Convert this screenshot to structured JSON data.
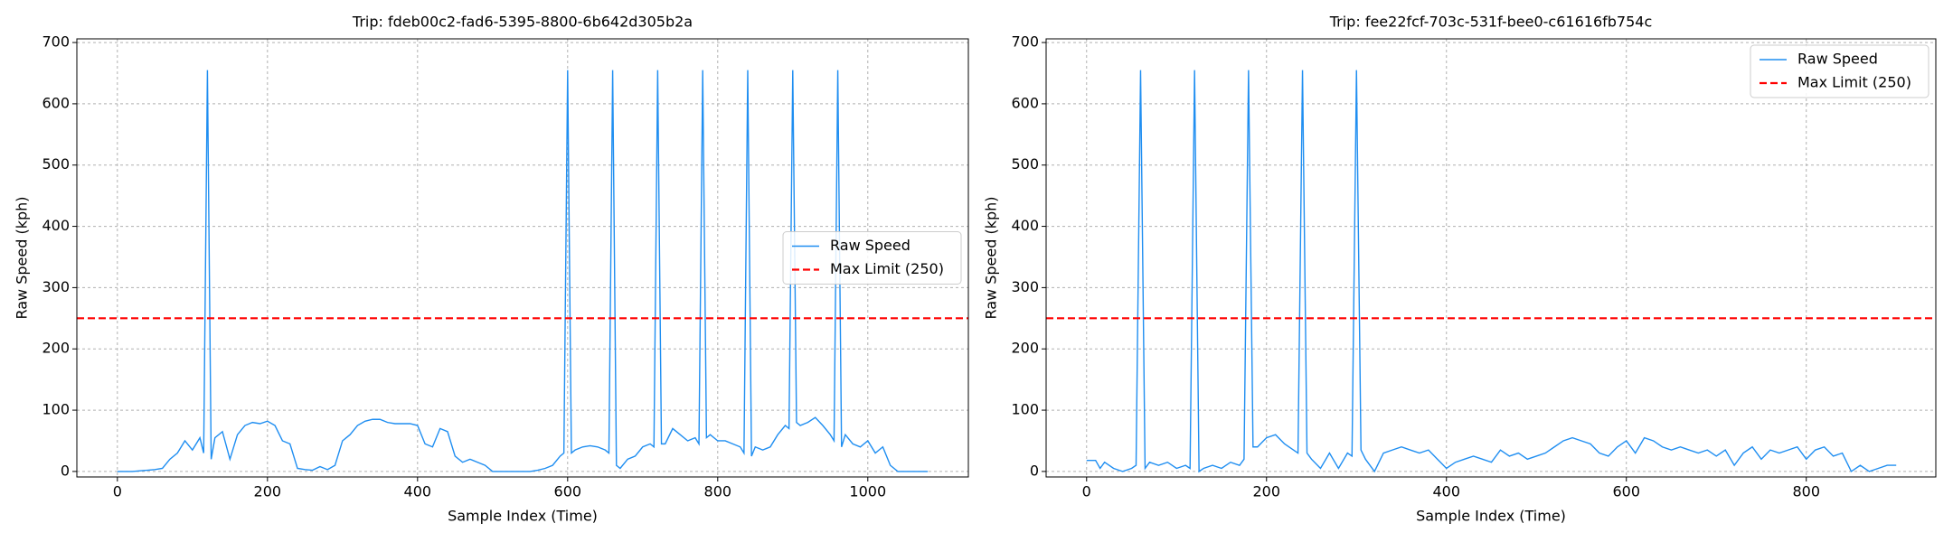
{
  "chart_data": [
    {
      "type": "line",
      "title": "Trip: fdeb00c2-fad6-5395-8800-6b642d305b2a",
      "x_label": "Sample Index (Time)",
      "y_label": "Raw Speed (kph)",
      "x": [
        0,
        10,
        20,
        30,
        40,
        50,
        60,
        70,
        80,
        90,
        100,
        110,
        115,
        120,
        125,
        130,
        140,
        150,
        160,
        170,
        180,
        190,
        200,
        210,
        220,
        230,
        240,
        250,
        260,
        270,
        280,
        290,
        300,
        310,
        320,
        330,
        340,
        350,
        360,
        370,
        380,
        390,
        400,
        410,
        420,
        430,
        440,
        450,
        460,
        470,
        480,
        490,
        500,
        510,
        520,
        530,
        540,
        550,
        560,
        570,
        580,
        590,
        595,
        600,
        605,
        610,
        620,
        630,
        640,
        650,
        655,
        660,
        665,
        670,
        680,
        690,
        700,
        710,
        715,
        720,
        725,
        730,
        740,
        750,
        760,
        770,
        775,
        780,
        785,
        790,
        800,
        810,
        820,
        830,
        835,
        840,
        845,
        850,
        860,
        870,
        880,
        890,
        895,
        900,
        905,
        910,
        920,
        930,
        940,
        950,
        955,
        960,
        965,
        970,
        980,
        990,
        1000,
        1010,
        1020,
        1030,
        1040,
        1050,
        1060,
        1070,
        1080
      ],
      "series": [
        {
          "name": "Raw Speed",
          "color": "#1f8ef1",
          "values": [
            0,
            0,
            0,
            1,
            2,
            3,
            5,
            20,
            30,
            50,
            35,
            55,
            30,
            655,
            20,
            55,
            65,
            20,
            60,
            75,
            80,
            78,
            82,
            75,
            50,
            45,
            5,
            3,
            2,
            8,
            3,
            10,
            50,
            60,
            75,
            82,
            85,
            85,
            80,
            78,
            78,
            78,
            75,
            45,
            40,
            70,
            65,
            25,
            15,
            20,
            15,
            10,
            0,
            0,
            0,
            0,
            0,
            0,
            2,
            5,
            10,
            25,
            30,
            655,
            30,
            35,
            40,
            42,
            40,
            35,
            30,
            655,
            10,
            5,
            20,
            25,
            40,
            45,
            40,
            655,
            45,
            45,
            70,
            60,
            50,
            55,
            45,
            655,
            55,
            60,
            50,
            50,
            45,
            40,
            30,
            655,
            25,
            40,
            35,
            40,
            60,
            75,
            70,
            655,
            80,
            75,
            80,
            88,
            75,
            60,
            50,
            655,
            40,
            60,
            45,
            40,
            50,
            30,
            40,
            10,
            0,
            0,
            0,
            0,
            0
          ]
        }
      ],
      "reference_line": {
        "name": "Max Limit (250)",
        "value": 250,
        "color": "#ff0000",
        "style": "dashed"
      },
      "xlim": [
        -54,
        1134
      ],
      "ylim": [
        -9,
        706
      ],
      "xticks": [
        0,
        200,
        400,
        600,
        800,
        1000
      ],
      "yticks": [
        0,
        100,
        200,
        300,
        400,
        500,
        600,
        700
      ],
      "grid": true,
      "legend_loc": "center right"
    },
    {
      "type": "line",
      "title": "Trip: fee22fcf-703c-531f-bee0-c61616fb754c",
      "x_label": "Sample Index (Time)",
      "y_label": "Raw Speed (kph)",
      "x": [
        0,
        10,
        15,
        20,
        30,
        40,
        50,
        55,
        60,
        65,
        70,
        80,
        90,
        100,
        110,
        115,
        120,
        125,
        130,
        140,
        150,
        160,
        170,
        175,
        180,
        185,
        190,
        200,
        210,
        220,
        230,
        235,
        240,
        245,
        250,
        260,
        270,
        280,
        290,
        295,
        300,
        305,
        310,
        320,
        330,
        340,
        350,
        360,
        370,
        380,
        390,
        400,
        410,
        420,
        430,
        440,
        450,
        460,
        470,
        480,
        490,
        500,
        510,
        520,
        530,
        540,
        550,
        560,
        570,
        580,
        590,
        600,
        610,
        620,
        630,
        640,
        650,
        660,
        670,
        680,
        690,
        700,
        710,
        720,
        730,
        740,
        750,
        760,
        770,
        780,
        790,
        800,
        810,
        820,
        830,
        840,
        850,
        860,
        870,
        880,
        890,
        900
      ],
      "series": [
        {
          "name": "Raw Speed",
          "color": "#1f8ef1",
          "values": [
            18,
            18,
            5,
            15,
            5,
            0,
            5,
            10,
            655,
            5,
            15,
            10,
            15,
            5,
            10,
            5,
            655,
            0,
            5,
            10,
            5,
            15,
            10,
            20,
            655,
            40,
            40,
            55,
            60,
            45,
            35,
            30,
            655,
            30,
            20,
            5,
            30,
            5,
            30,
            25,
            655,
            35,
            20,
            0,
            30,
            35,
            40,
            35,
            30,
            35,
            20,
            5,
            15,
            20,
            25,
            20,
            15,
            35,
            25,
            30,
            20,
            25,
            30,
            40,
            50,
            55,
            50,
            45,
            30,
            25,
            40,
            50,
            30,
            55,
            50,
            40,
            35,
            40,
            35,
            30,
            35,
            25,
            35,
            10,
            30,
            40,
            20,
            35,
            30,
            35,
            40,
            20,
            35,
            40,
            25,
            30,
            0,
            10,
            0,
            5,
            10,
            10
          ]
        }
      ],
      "reference_line": {
        "name": "Max Limit (250)",
        "value": 250,
        "color": "#ff0000",
        "style": "dashed"
      },
      "xlim": [
        -45,
        944
      ],
      "ylim": [
        -9,
        706
      ],
      "xticks": [
        0,
        200,
        400,
        600,
        800
      ],
      "yticks": [
        0,
        100,
        200,
        300,
        400,
        500,
        600,
        700
      ],
      "grid": true,
      "legend_loc": "upper right"
    }
  ]
}
